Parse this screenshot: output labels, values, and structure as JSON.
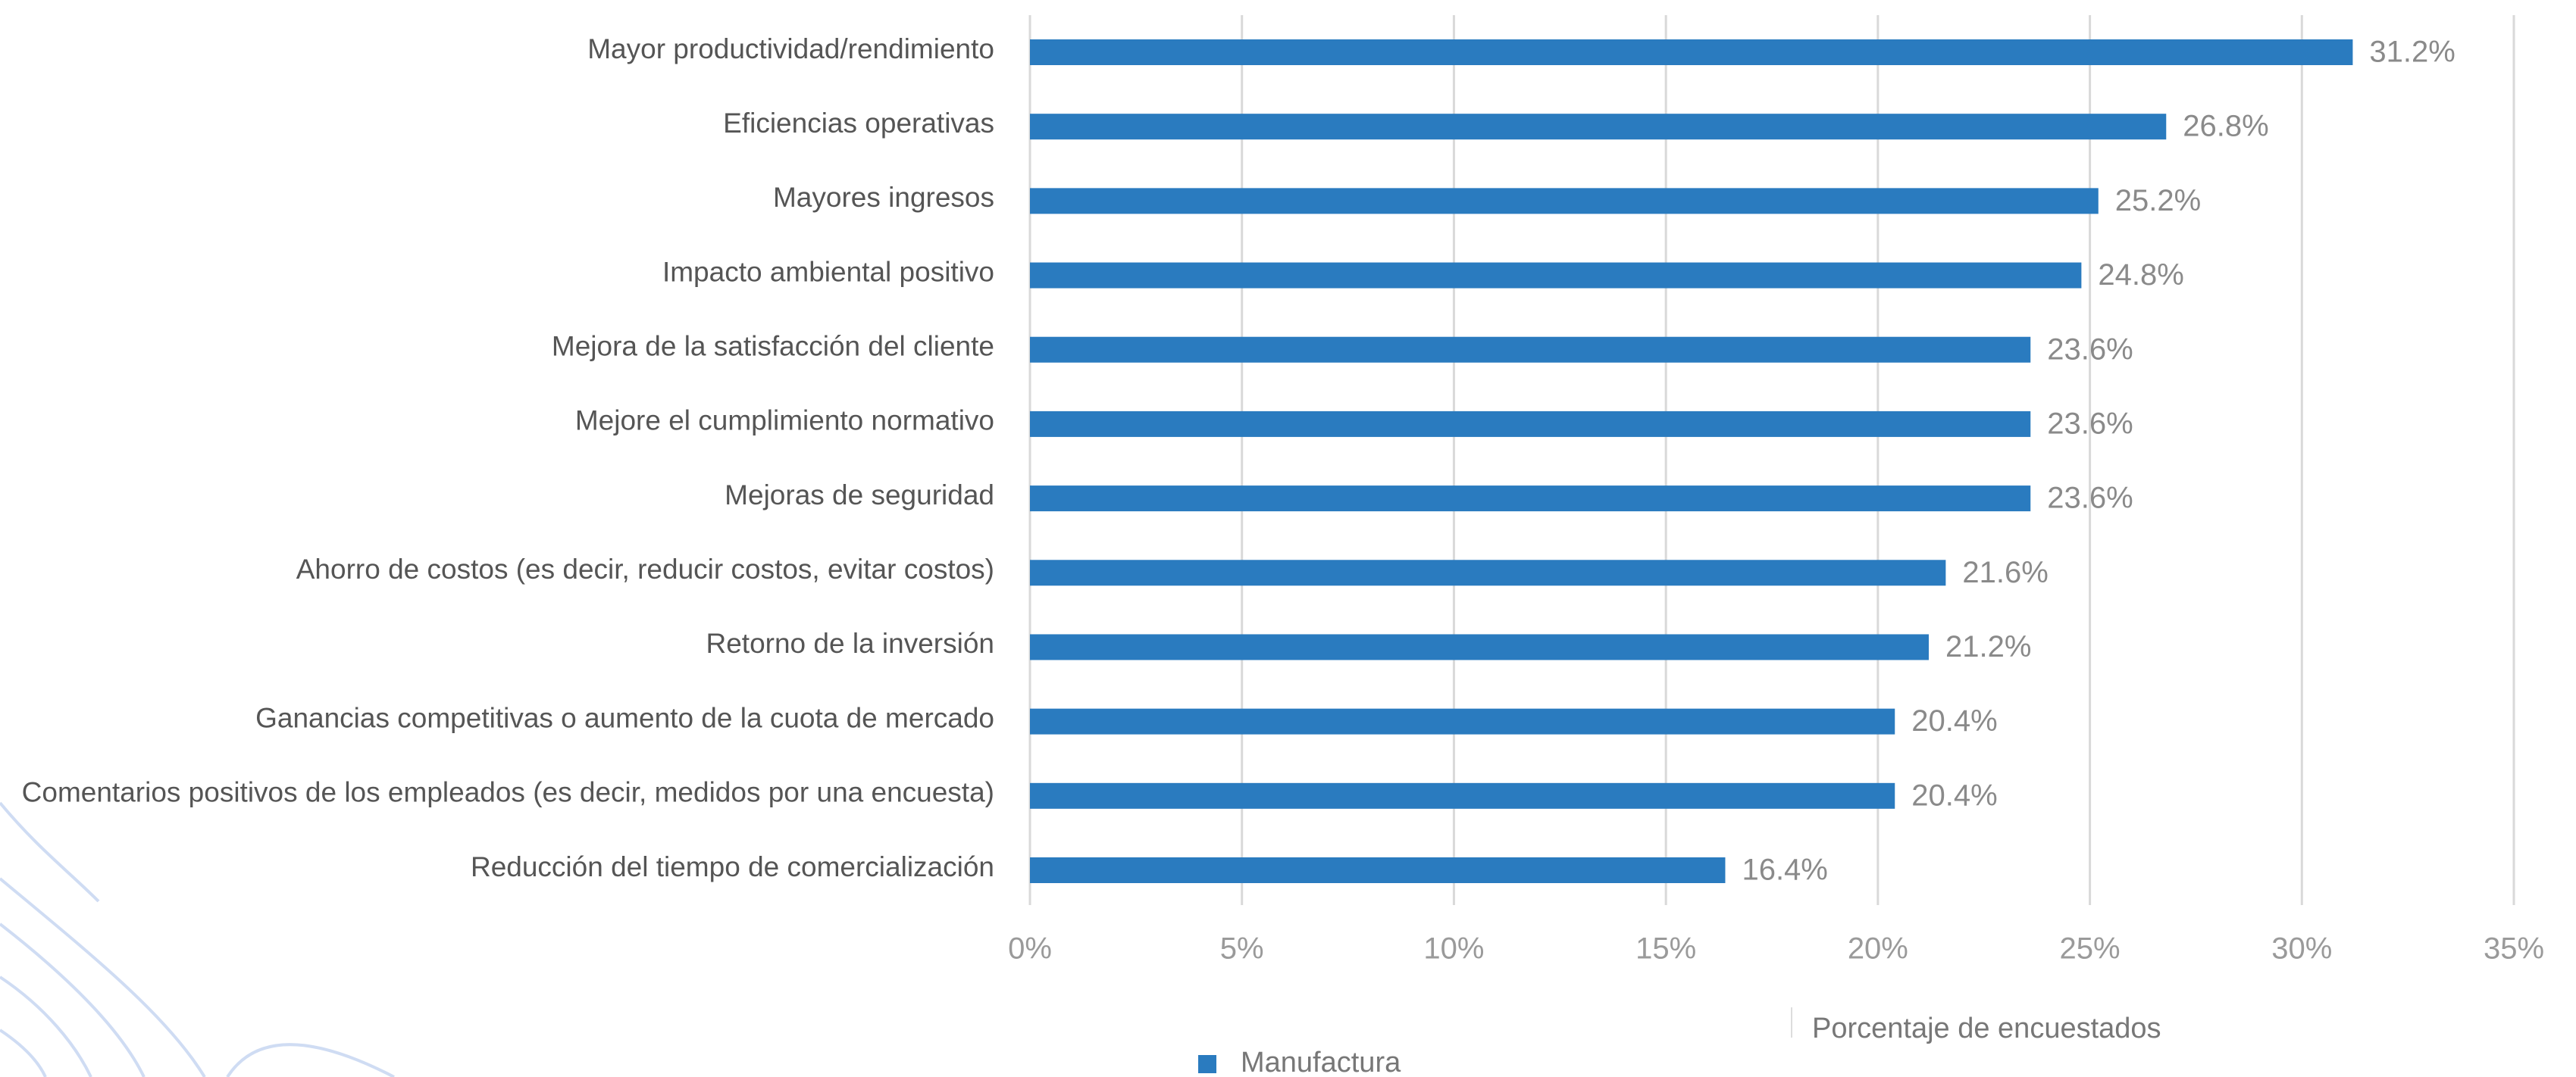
{
  "chart_data": {
    "type": "barh",
    "categories": [
      "Mayor productividad/rendimiento",
      "Eficiencias operativas",
      "Mayores ingresos",
      "Impacto ambiental positivo",
      "Mejora de la satisfacción del cliente",
      "Mejore el cumplimiento normativo",
      "Mejoras de seguridad",
      "Ahorro de costos (es decir, reducir costos, evitar costos)",
      "Retorno de la inversión",
      "Ganancias competitivas o aumento de la cuota de mercado",
      "Comentarios positivos de los empleados (es decir, medidos por una encuesta)",
      "Reducción del tiempo de comercialización"
    ],
    "series": [
      {
        "name": "Manufactura",
        "color": "#2a7bbf",
        "values": [
          31.2,
          26.8,
          25.2,
          24.8,
          23.6,
          23.6,
          23.6,
          21.6,
          21.2,
          20.4,
          20.4,
          16.4
        ],
        "value_labels": [
          "31.2%",
          "26.8%",
          "25.2%",
          "24.8%",
          "23.6%",
          "23.6%",
          "23.6%",
          "21.6%",
          "21.2%",
          "20.4%",
          "20.4%",
          "16.4%"
        ]
      }
    ],
    "xlabel": "Porcentaje de encuestados",
    "xlim": [
      0,
      35
    ],
    "xticks": [
      {
        "value": 0,
        "label": "0%"
      },
      {
        "value": 5,
        "label": "5%"
      },
      {
        "value": 10,
        "label": "10%"
      },
      {
        "value": 15,
        "label": "15%"
      },
      {
        "value": 20,
        "label": "20%"
      },
      {
        "value": 25,
        "label": "25%"
      },
      {
        "value": 30,
        "label": "30%"
      },
      {
        "value": 35,
        "label": "35%"
      }
    ],
    "grid": true
  }
}
